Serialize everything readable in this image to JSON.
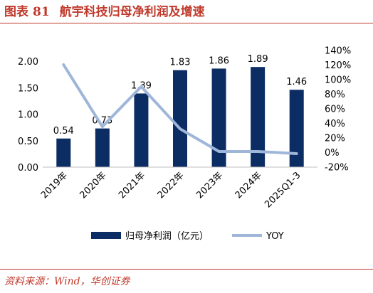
{
  "header": {
    "figure_label": "图表",
    "figure_number": "81",
    "title": "航宇科技归母净利润及增速"
  },
  "source": "资料来源：Wind，华创证券",
  "chart_data": {
    "type": "bar",
    "categories": [
      "2019年",
      "2020年",
      "2021年",
      "2022年",
      "2023年",
      "2024年",
      "2025Q1-3"
    ],
    "series": [
      {
        "name": "归母净利润（亿元）",
        "type": "bar",
        "axis": "left",
        "color": "#0b2d64",
        "values": [
          0.54,
          0.73,
          1.39,
          1.83,
          1.86,
          1.89,
          1.46
        ],
        "labels": [
          "0.54",
          "0.73",
          "1.39",
          "1.83",
          "1.86",
          "1.89",
          "1.46"
        ]
      },
      {
        "name": "YOY",
        "type": "line",
        "axis": "right",
        "color": "#9fb6d9",
        "values": [
          120,
          35,
          90,
          32,
          1,
          1,
          -2
        ]
      }
    ],
    "left_axis": {
      "min": 0,
      "max": 2.0,
      "step": 0.5,
      "ticks": [
        "0.00",
        "0.50",
        "1.00",
        "1.50",
        "2.00"
      ]
    },
    "right_axis": {
      "min": -20,
      "max": 140,
      "step": 20,
      "ticks": [
        "-20%",
        "0%",
        "20%",
        "40%",
        "60%",
        "80%",
        "100%",
        "120%",
        "140%"
      ]
    },
    "legend_position": "bottom",
    "grid": false
  }
}
